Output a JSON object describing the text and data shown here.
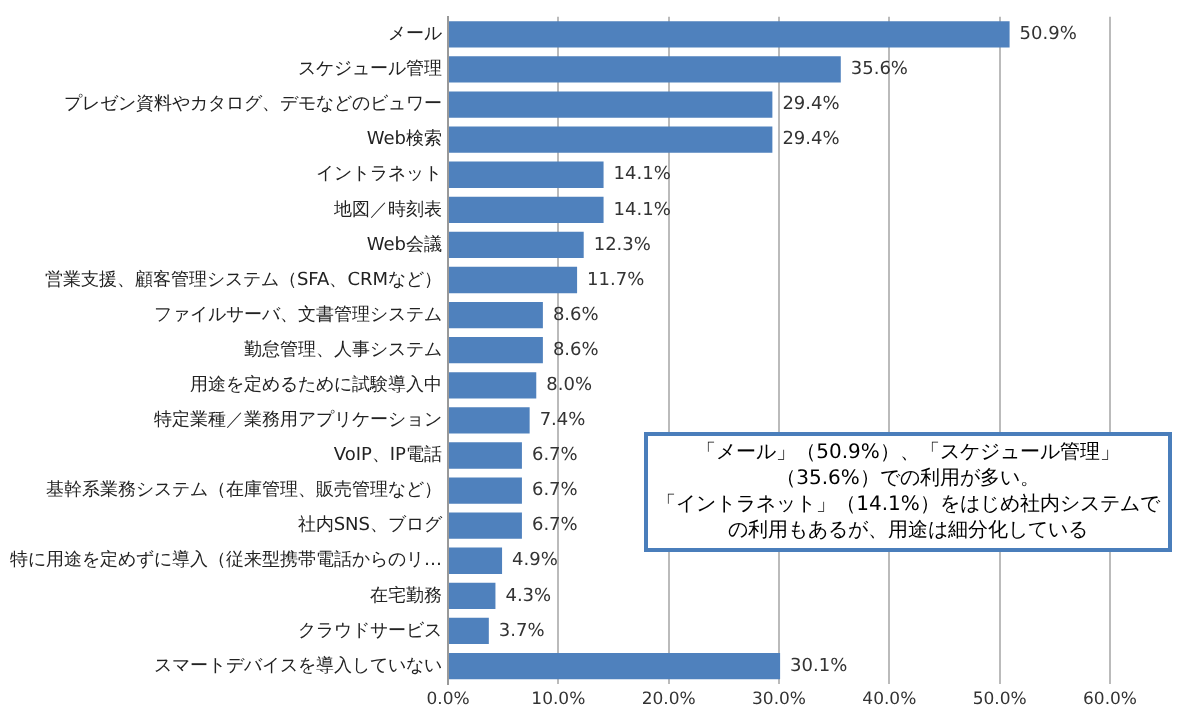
{
  "chart_data": {
    "type": "bar",
    "orientation": "horizontal",
    "categories": [
      "メール",
      "スケジュール管理",
      "プレゼン資料やカタログ、デモなどのビュワー",
      "Web検索",
      "イントラネット",
      "地図／時刻表",
      "Web会議",
      "営業支援、顧客管理システム（SFA、CRMなど）",
      "ファイルサーバ、文書管理システム",
      "勤怠管理、人事システム",
      "用途を定めるために試験導入中",
      "特定業種／業務用アプリケーション",
      "VoIP、IP電話",
      "基幹系業務システム（在庫管理、販売管理など）",
      "社内SNS、ブログ",
      "特に用途を定めずに導入（従来型携帯電話からのリ…",
      "在宅勤務",
      "クラウドサービス",
      "スマートデバイスを導入していない"
    ],
    "values": [
      50.9,
      35.6,
      29.4,
      29.4,
      14.1,
      14.1,
      12.3,
      11.7,
      8.6,
      8.6,
      8.0,
      7.4,
      6.7,
      6.7,
      6.7,
      4.9,
      4.3,
      3.7,
      30.1
    ],
    "value_labels": [
      "50.9%",
      "35.6%",
      "29.4%",
      "29.4%",
      "14.1%",
      "14.1%",
      "12.3%",
      "11.7%",
      "8.6%",
      "8.6%",
      "8.0%",
      "7.4%",
      "6.7%",
      "6.7%",
      "6.7%",
      "4.9%",
      "4.3%",
      "3.7%",
      "30.1%"
    ],
    "color": "#4f81bd",
    "xlim": [
      0,
      60
    ],
    "xticks": [
      {
        "value": 0,
        "label": "0.0%"
      },
      {
        "value": 10,
        "label": "10.0%"
      },
      {
        "value": 20,
        "label": "20.0%"
      },
      {
        "value": 30,
        "label": "30.0%"
      },
      {
        "value": 40,
        "label": "40.0%"
      },
      {
        "value": 50,
        "label": "50.0%"
      },
      {
        "value": 60,
        "label": "60.0%"
      }
    ],
    "grid": "x",
    "legend": false,
    "annotations": [
      "「メール」（50.9%）、「スケジュール管理」（35.6%）での利用が多い。",
      "「イントラネット」（14.1%）をはじめ社内システムでの利用もあるが、用途は細分化している"
    ]
  }
}
